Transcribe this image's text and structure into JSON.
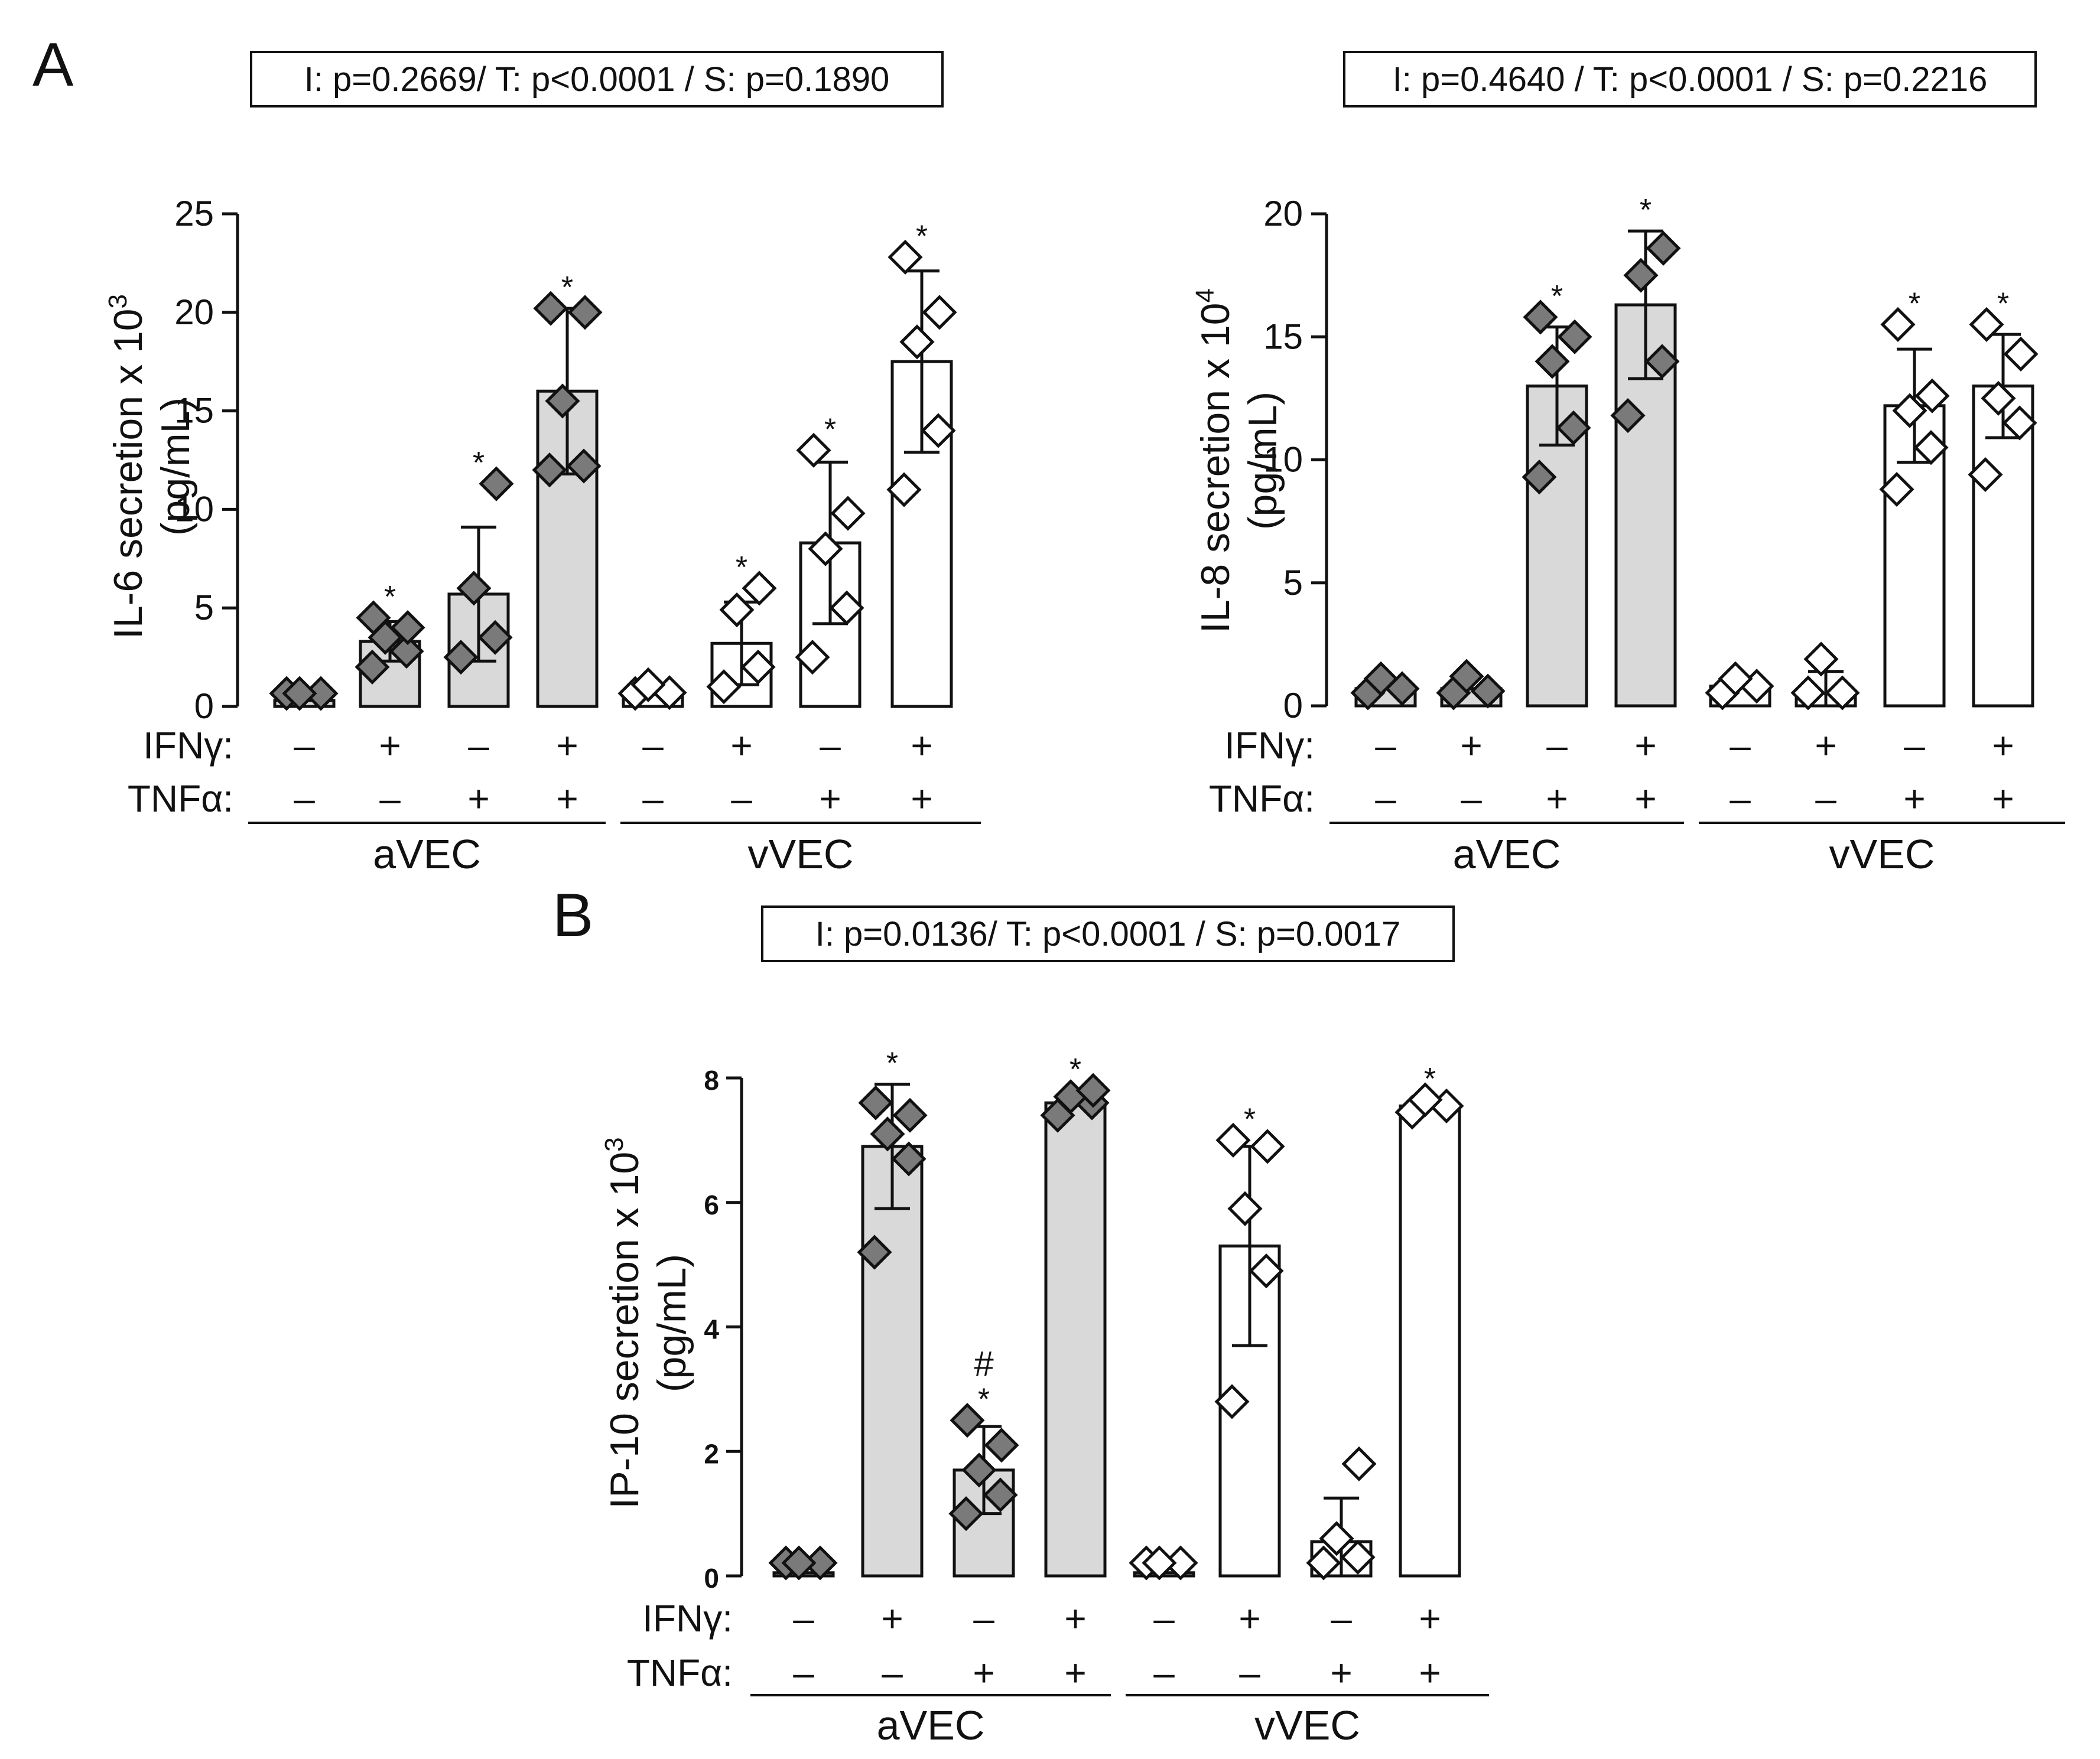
{
  "figure": {
    "panel_a_label": "A",
    "panel_b_label": "B"
  },
  "colors": {
    "filled_bar": "#d9d9d9",
    "open_bar": "#ffffff",
    "filled_marker": "#7a7a7a",
    "open_marker": "#ffffff",
    "stroke": "#111111"
  },
  "chart_data": [
    {
      "id": "il6",
      "type": "bar",
      "panel": "A",
      "stats_box": "I: p=0.2669/ T: p<0.0001 / S: p=0.1890",
      "ylabel": "IL-6 secretion x 10",
      "ylabel_exponent": "3",
      "ylabel_units": "(pg/mL)",
      "ylim": [
        0,
        25
      ],
      "yticks": [
        0,
        5,
        10,
        15,
        20,
        25
      ],
      "ytick_labels": [
        "0",
        "5",
        "10",
        "15",
        "20",
        "25"
      ],
      "row_labels": [
        "IFNγ:",
        "TNFα:"
      ],
      "groups": [
        {
          "label": "aVEC",
          "fill": "filled",
          "bars": [
            {
              "ifn": "-",
              "tnf": "-",
              "mean": 0.3,
              "sd": 0.0,
              "points": [
                0.2,
                0.3,
                0.4
              ],
              "sig": ""
            },
            {
              "ifn": "+",
              "tnf": "-",
              "mean": 3.3,
              "sd": 1.0,
              "points": [
                2.0,
                2.8,
                3.5,
                4.0,
                4.5
              ],
              "sig": "*"
            },
            {
              "ifn": "-",
              "tnf": "+",
              "mean": 5.7,
              "sd": 3.4,
              "points": [
                2.5,
                3.5,
                6.0,
                11.3
              ],
              "sig": "*"
            },
            {
              "ifn": "+",
              "tnf": "+",
              "mean": 16.0,
              "sd": 4.2,
              "points": [
                12.0,
                12.2,
                15.5,
                20.0,
                20.2
              ],
              "sig": "*"
            }
          ]
        },
        {
          "label": "vVEC",
          "fill": "open",
          "bars": [
            {
              "ifn": "-",
              "tnf": "-",
              "mean": 0.6,
              "sd": 0.0,
              "points": [
                0.4,
                0.7,
                1.1
              ],
              "sig": ""
            },
            {
              "ifn": "+",
              "tnf": "-",
              "mean": 3.2,
              "sd": 2.1,
              "points": [
                1.0,
                2.0,
                4.9,
                6.0
              ],
              "sig": "*"
            },
            {
              "ifn": "-",
              "tnf": "+",
              "mean": 8.3,
              "sd": 4.1,
              "points": [
                2.5,
                5.0,
                8.0,
                9.8,
                13.0
              ],
              "sig": "*"
            },
            {
              "ifn": "+",
              "tnf": "+",
              "mean": 17.5,
              "sd": 4.6,
              "points": [
                11.0,
                14.0,
                18.5,
                20.0,
                22.8
              ],
              "sig": "*"
            }
          ]
        }
      ]
    },
    {
      "id": "il8",
      "type": "bar",
      "panel": "A",
      "stats_box": "I: p=0.4640 / T: p<0.0001 / S: p=0.2216",
      "ylabel": "IL-8 secretion x 10",
      "ylabel_exponent": "4",
      "ylabel_units": "(pg/mL)",
      "ylim": [
        0,
        20
      ],
      "yticks": [
        0,
        5,
        10,
        15,
        20
      ],
      "ytick_labels": [
        "0",
        "5",
        "10",
        "15",
        "20"
      ],
      "row_labels": [
        "IFNγ:",
        "TNFα:"
      ],
      "groups": [
        {
          "label": "aVEC",
          "fill": "filled",
          "bars": [
            {
              "ifn": "-",
              "tnf": "-",
              "mean": 0.7,
              "sd": 0.0,
              "points": [
                0.4,
                0.7,
                1.1
              ],
              "sig": ""
            },
            {
              "ifn": "+",
              "tnf": "-",
              "mean": 0.7,
              "sd": 0.0,
              "points": [
                0.3,
                0.6,
                1.2
              ],
              "sig": ""
            },
            {
              "ifn": "-",
              "tnf": "+",
              "mean": 13.0,
              "sd": 2.4,
              "points": [
                9.3,
                11.3,
                14.0,
                15.0,
                15.8
              ],
              "sig": "*"
            },
            {
              "ifn": "+",
              "tnf": "+",
              "mean": 16.3,
              "sd": 3.0,
              "points": [
                11.8,
                14.0,
                17.5,
                18.6
              ],
              "sig": "*"
            }
          ]
        },
        {
          "label": "vVEC",
          "fill": "open",
          "bars": [
            {
              "ifn": "-",
              "tnf": "-",
              "mean": 0.8,
              "sd": 0.0,
              "points": [
                0.5,
                0.8,
                1.1
              ],
              "sig": ""
            },
            {
              "ifn": "+",
              "tnf": "-",
              "mean": 0.5,
              "sd": 0.9,
              "points": [
                0.2,
                0.4,
                1.9
              ],
              "sig": ""
            },
            {
              "ifn": "-",
              "tnf": "+",
              "mean": 12.2,
              "sd": 2.3,
              "points": [
                8.8,
                10.5,
                12.0,
                12.6,
                15.5
              ],
              "sig": "*"
            },
            {
              "ifn": "+",
              "tnf": "+",
              "mean": 13.0,
              "sd": 2.1,
              "points": [
                9.4,
                11.5,
                12.5,
                14.3,
                15.5
              ],
              "sig": "*"
            }
          ]
        }
      ]
    },
    {
      "id": "ip10",
      "type": "bar",
      "panel": "B",
      "stats_box": "I: p=0.0136/ T: p<0.0001 / S: p=0.0017",
      "ylabel": "IP-10 secretion x 10",
      "ylabel_exponent": "3",
      "ylabel_units": "(pg/mL)",
      "ylim": [
        0,
        8
      ],
      "yticks": [
        0,
        2,
        4,
        6,
        8
      ],
      "ytick_labels": [
        "0",
        "2",
        "4",
        "6",
        "8"
      ],
      "row_labels": [
        "IFNγ:",
        "TNFα:"
      ],
      "groups": [
        {
          "label": "aVEC",
          "fill": "filled",
          "bars": [
            {
              "ifn": "-",
              "tnf": "-",
              "mean": 0.05,
              "sd": 0.0,
              "points": [
                0.0,
                0.05,
                0.1
              ],
              "sig": ""
            },
            {
              "ifn": "+",
              "tnf": "-",
              "mean": 6.9,
              "sd": 1.0,
              "points": [
                5.2,
                6.7,
                7.1,
                7.4,
                7.6
              ],
              "sig": "*"
            },
            {
              "ifn": "-",
              "tnf": "+",
              "mean": 1.7,
              "sd": 0.7,
              "points": [
                1.0,
                1.3,
                1.7,
                2.1,
                2.5
              ],
              "sig": "*",
              "sig_hash": "#"
            },
            {
              "ifn": "+",
              "tnf": "+",
              "mean": 7.6,
              "sd": 0.0,
              "points": [
                7.4,
                7.6,
                7.7,
                7.8
              ],
              "sig": "*"
            }
          ]
        },
        {
          "label": "vVEC",
          "fill": "open",
          "bars": [
            {
              "ifn": "-",
              "tnf": "-",
              "mean": 0.05,
              "sd": 0.0,
              "points": [
                0.0,
                0.05,
                0.1
              ],
              "sig": ""
            },
            {
              "ifn": "+",
              "tnf": "-",
              "mean": 5.3,
              "sd": 1.6,
              "points": [
                2.8,
                4.9,
                5.9,
                6.9,
                7.0
              ],
              "sig": "*"
            },
            {
              "ifn": "-",
              "tnf": "+",
              "mean": 0.55,
              "sd": 0.7,
              "points": [
                0.1,
                0.3,
                0.6,
                1.8
              ],
              "sig": ""
            },
            {
              "ifn": "+",
              "tnf": "+",
              "mean": 7.55,
              "sd": 0.0,
              "points": [
                7.45,
                7.55,
                7.65
              ],
              "sig": "*"
            }
          ]
        }
      ]
    }
  ]
}
